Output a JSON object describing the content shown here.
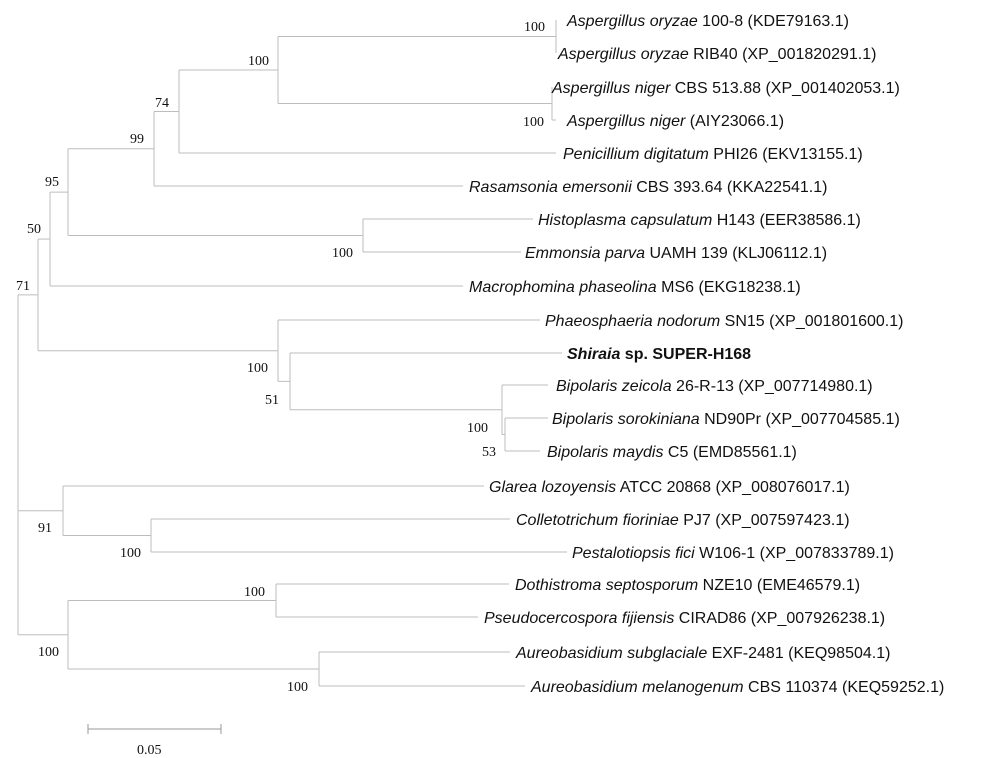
{
  "taxa": [
    {
      "genus": "Aspergillus",
      "epithet": "oryzae",
      "strain": "100-8",
      "accession": "(KDE79163.1)",
      "bold": false
    },
    {
      "genus": "Aspergillus",
      "epithet": "oryzae",
      "strain": "RIB40",
      "accession": "(XP_001820291.1)",
      "bold": false
    },
    {
      "genus": "Aspergillus",
      "epithet": "niger",
      "strain": "CBS 513.88",
      "accession": "(XP_001402053.1)",
      "bold": false
    },
    {
      "genus": "Aspergillus",
      "epithet": "niger",
      "strain": "",
      "accession": "(AIY23066.1)",
      "bold": false
    },
    {
      "genus": "Penicillium",
      "epithet": "digitatum",
      "strain": "PHI26",
      "accession": "(EKV13155.1)",
      "bold": false
    },
    {
      "genus": "Rasamsonia",
      "epithet": "emersonii",
      "strain": "CBS 393.64",
      "accession": "(KKA22541.1)",
      "bold": false
    },
    {
      "genus": "Histoplasma",
      "epithet": "capsulatum",
      "strain": "H143",
      "accession": "(EER38586.1)",
      "bold": false
    },
    {
      "genus": "Emmonsia",
      "epithet": "parva",
      "strain": "UAMH 139",
      "accession": "(KLJ06112.1)",
      "bold": false
    },
    {
      "genus": "Macrophomina",
      "epithet": "phaseolina",
      "strain": "MS6",
      "accession": "(EKG18238.1)",
      "bold": false
    },
    {
      "genus": "Phaeosphaeria",
      "epithet": "nodorum",
      "strain": "SN15",
      "accession": "(XP_001801600.1)",
      "bold": false
    },
    {
      "genus": "Shiraia",
      "epithet": "",
      "strain": "sp. SUPER-H168",
      "accession": "",
      "bold": true
    },
    {
      "genus": "Bipolaris",
      "epithet": "zeicola",
      "strain": "26-R-13",
      "accession": "(XP_007714980.1)",
      "bold": false
    },
    {
      "genus": "Bipolaris",
      "epithet": "sorokiniana",
      "strain": "ND90Pr",
      "accession": "(XP_007704585.1)",
      "bold": false
    },
    {
      "genus": "Bipolaris",
      "epithet": "maydis",
      "strain": "C5",
      "accession": "(EMD85561.1)",
      "bold": false
    },
    {
      "genus": "Glarea",
      "epithet": "lozoyensis",
      "strain": "ATCC 20868",
      "accession": "(XP_008076017.1)",
      "bold": false
    },
    {
      "genus": "Colletotrichum",
      "epithet": "fioriniae",
      "strain": "PJ7",
      "accession": "(XP_007597423.1)",
      "bold": false
    },
    {
      "genus": "Pestalotiopsis",
      "epithet": "fici",
      "strain": "W106-1",
      "accession": "(XP_007833789.1)",
      "bold": false
    },
    {
      "genus": "Dothistroma",
      "epithet": "septosporum",
      "strain": "NZE10",
      "accession": "(EME46579.1)",
      "bold": false
    },
    {
      "genus": "Pseudocercospora",
      "epithet": "fijiensis",
      "strain": "CIRAD86",
      "accession": "(XP_007926238.1)",
      "bold": false
    },
    {
      "genus": "Aureobasidium",
      "epithet": "subglaciale",
      "strain": "EXF-2481",
      "accession": "(KEQ98504.1)",
      "bold": false
    },
    {
      "genus": "Aureobasidium",
      "epithet": "melanogenum",
      "strain": "CBS 110374",
      "accession": "(KEQ59252.1)",
      "bold": false
    }
  ],
  "bootstrap": {
    "aspergillus_oryzae": "100",
    "aspergillus_niger": "100",
    "aspergillus": "100",
    "aspergillus_penicillium": "74",
    "eurotiales": "99",
    "histoplasma_emmonsia": "100",
    "eurotiomycetes": "95",
    "with_macrophomina": "50",
    "bipolaris_sorokiniana_maydis": "53",
    "bipolaris": "100",
    "shiraia_bipolaris": "51",
    "pleosporales": "100",
    "dothideomycetes_core": "71",
    "colletotrichum_pestalotiopsis": "100",
    "leotio_sordario": "91",
    "dothistroma_pseudocercospora": "100",
    "aureobasidium": "100",
    "dothideales_capnodiales": "100"
  },
  "scale_bar": {
    "label": "0.05"
  },
  "colors": {
    "branch": "#bdbdbd",
    "text": "#111111"
  }
}
